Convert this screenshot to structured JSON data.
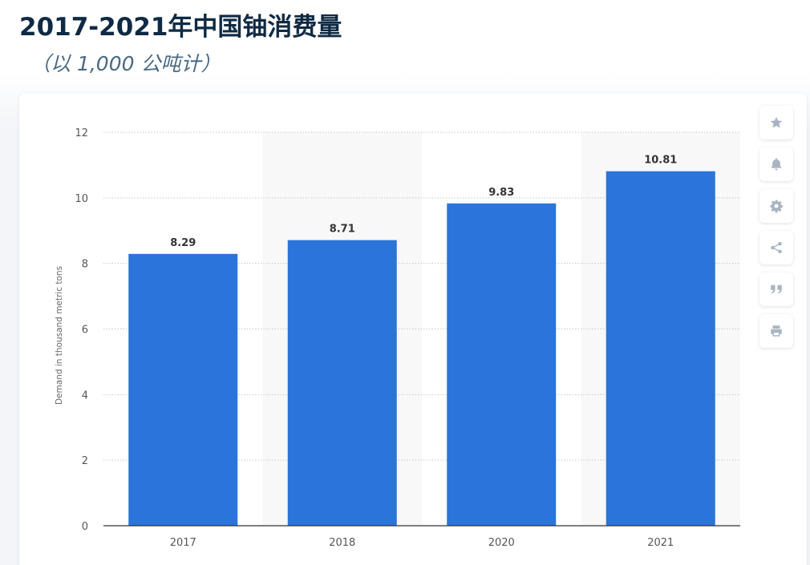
{
  "header": {
    "title": "2017-2021年中国铀消费量",
    "subtitle": "（以 1,000 公吨计）"
  },
  "toolbar": {
    "buttons": [
      {
        "icon": "star-icon",
        "label": "star"
      },
      {
        "icon": "bell-icon",
        "label": "bell"
      },
      {
        "icon": "gear-icon",
        "label": "gear"
      },
      {
        "icon": "share-icon",
        "label": "share"
      },
      {
        "icon": "quote-icon",
        "label": "quote"
      },
      {
        "icon": "print-icon",
        "label": "print"
      }
    ],
    "icon_color": "#a9b4c2"
  },
  "chart_data": {
    "type": "bar",
    "categories": [
      "2017",
      "2018",
      "2020",
      "2021"
    ],
    "values": [
      8.29,
      8.71,
      9.83,
      10.81
    ],
    "value_labels": [
      "8.29",
      "8.71",
      "9.83",
      "10.81"
    ],
    "title": "2017-2021年中国铀消费量",
    "subtitle": "（以 1,000 公吨计）",
    "xlabel": "",
    "ylabel": "Demand in thousand metric tons",
    "ylim": [
      0,
      12
    ],
    "yticks": [
      0,
      2,
      4,
      6,
      8,
      10,
      12
    ],
    "grid": true,
    "bar_color": "#2a74db",
    "alt_band_color": "#f8f8f8"
  }
}
